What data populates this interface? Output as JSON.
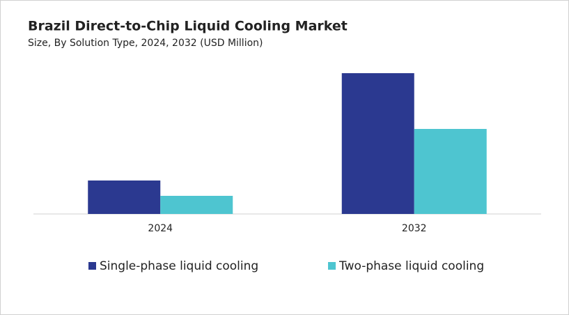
{
  "chart_data": {
    "type": "bar",
    "title": "Brazil Direct-to-Chip Liquid Cooling Market",
    "subtitle": "Size, By Solution Type, 2024, 2032 (USD Million)",
    "categories": [
      "2024",
      "2032"
    ],
    "series": [
      {
        "name": "Single-phase liquid cooling",
        "color": "#2b3990",
        "values": [
          48,
          202
        ]
      },
      {
        "name": "Two-phase liquid cooling",
        "color": "#4ec5d0",
        "values": [
          26,
          122
        ]
      }
    ],
    "ylim": [
      0,
      210
    ]
  }
}
